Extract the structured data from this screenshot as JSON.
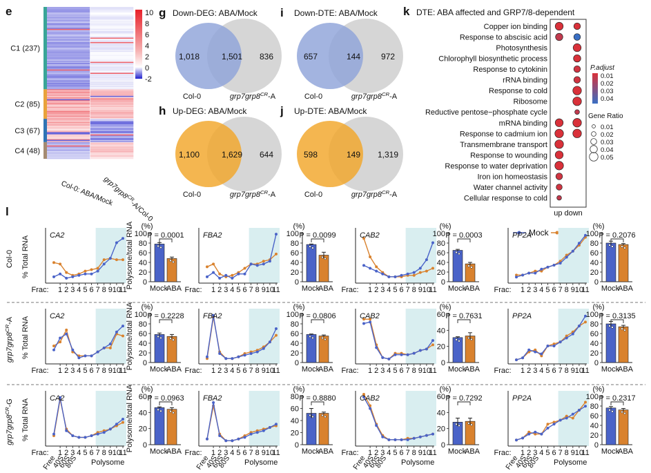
{
  "colors": {
    "heat_high": "#e8202a",
    "heat_mid": "#ffffff",
    "heat_low": "#2222cc",
    "venn_left_down": "#8fa4d9",
    "venn_right": "#c8c8c8",
    "venn_left_up": "#f2a62a",
    "mock": "#4a63c8",
    "aba": "#d9822e",
    "shade": "#d9eef0",
    "c1": "#39a597",
    "c2": "#e9a23b",
    "c3": "#2f74b5",
    "c4": "#a58b72"
  },
  "panel_e": {
    "letter": "e",
    "scale_ticks": [
      "10",
      "8",
      "6",
      "4",
      "2",
      "0",
      "-2"
    ],
    "clusters": [
      {
        "label": "C1 (237)",
        "color": "#39a597",
        "n": 237
      },
      {
        "label": "C2 (85)",
        "color": "#e9a23b",
        "n": 85
      },
      {
        "label": "C3 (67)",
        "color": "#2f74b5",
        "n": 67
      },
      {
        "label": "C4 (48)",
        "color": "#a58b72",
        "n": 48
      }
    ],
    "col1_label": "Col-0: ABA/Mock",
    "col2_label": "grp7grp8CR-A/Col-0",
    "col2_main": "grp7grp8",
    "col2_sup": "CR",
    "col2_tail": "-A/Col-0"
  },
  "venns": [
    {
      "letter": "g",
      "title": "Down-DEG: ABA/Mock",
      "left": "1,018",
      "middle": "1,501",
      "right": "836",
      "left_label": "Col-0",
      "right_main": "grp7grp8",
      "right_sup": "CR",
      "right_tail": "-A",
      "color": "#8fa4d9"
    },
    {
      "letter": "i",
      "title": "Down-DTE: ABA/Mock",
      "left": "657",
      "middle": "144",
      "right": "972",
      "left_label": "Col-0",
      "right_main": "grp7grp8",
      "right_sup": "CR",
      "right_tail": "-A",
      "color": "#8fa4d9"
    },
    {
      "letter": "h",
      "title": "Up-DEG: ABA/Mock",
      "left": "1,100",
      "middle": "1,629",
      "right": "644",
      "left_label": "Col-0",
      "right_main": "grp7grp8",
      "right_sup": "CR",
      "right_tail": "-A",
      "color": "#f2a62a"
    },
    {
      "letter": "j",
      "title": "Up-DTE: ABA/Mock",
      "left": "598",
      "middle": "149",
      "right": "1,319",
      "left_label": "Col-0",
      "right_main": "grp7grp8",
      "right_sup": "CR",
      "right_tail": "-A",
      "color": "#f2a62a"
    }
  ],
  "chart_data": [
    {
      "id": "k",
      "type": "scatter",
      "title": "DTE: ABA affected and GRP7/8-dependent",
      "letter": "k",
      "x_categories": [
        "up",
        "down"
      ],
      "x_axis_label": "up down",
      "legend_padj_title": "P.adjust",
      "legend_padj_ticks": [
        "0.01",
        "0.02",
        "0.03",
        "0.04"
      ],
      "legend_ratio_title": "Gene Ratio",
      "legend_ratio_ticks": [
        "0.01",
        "0.02",
        "0.03",
        "0.04",
        "0.05"
      ],
      "terms": [
        {
          "name": "Copper ion binding",
          "up": {
            "ratio": 0.045,
            "padj": 0.01
          },
          "down": {
            "ratio": 0.035,
            "padj": 0.01
          }
        },
        {
          "name": "Response to abscisic acid",
          "up": {
            "ratio": 0.04,
            "padj": 0.015
          },
          "down": {
            "ratio": 0.035,
            "padj": 0.045
          }
        },
        {
          "name": "Photosynthesis",
          "up": null,
          "down": {
            "ratio": 0.045,
            "padj": 0.01
          }
        },
        {
          "name": "Chlorophyll biosynthetic process",
          "up": null,
          "down": {
            "ratio": 0.04,
            "padj": 0.01
          }
        },
        {
          "name": "Response to cytokinin",
          "up": null,
          "down": {
            "ratio": 0.035,
            "padj": 0.012
          }
        },
        {
          "name": "rRNA binding",
          "up": null,
          "down": {
            "ratio": 0.035,
            "padj": 0.012
          }
        },
        {
          "name": "Response to cold",
          "up": null,
          "down": {
            "ratio": 0.05,
            "padj": 0.01
          }
        },
        {
          "name": "Ribosome",
          "up": null,
          "down": {
            "ratio": 0.05,
            "padj": 0.01
          }
        },
        {
          "name": "Reductive pentose−phosphate cycle",
          "up": null,
          "down": {
            "ratio": 0.02,
            "padj": 0.015
          }
        },
        {
          "name": "mRNA binding",
          "up": {
            "ratio": 0.045,
            "padj": 0.01
          },
          "down": {
            "ratio": 0.05,
            "padj": 0.01
          }
        },
        {
          "name": "Response to cadmium ion",
          "up": {
            "ratio": 0.05,
            "padj": 0.01
          },
          "down": {
            "ratio": 0.05,
            "padj": 0.01
          }
        },
        {
          "name": "Transmembrane transport",
          "up": {
            "ratio": 0.05,
            "padj": 0.01
          },
          "down": null
        },
        {
          "name": "Response to wounding",
          "up": {
            "ratio": 0.045,
            "padj": 0.01
          },
          "down": null
        },
        {
          "name": "Response to water deprivation",
          "up": {
            "ratio": 0.05,
            "padj": 0.01
          },
          "down": null
        },
        {
          "name": "Iron ion homeostasis",
          "up": {
            "ratio": 0.035,
            "padj": 0.012
          },
          "down": null
        },
        {
          "name": "Water channel activity",
          "up": {
            "ratio": 0.03,
            "padj": 0.012
          },
          "down": null
        },
        {
          "name": "Cellular response to cold",
          "up": {
            "ratio": 0.02,
            "padj": 0.015
          },
          "down": null
        }
      ]
    },
    {
      "id": "l",
      "type": "line",
      "letter": "l",
      "legend": [
        "Mock",
        "ABA"
      ],
      "x_ticks": [
        "Frac:",
        "1",
        "2",
        "3",
        "4",
        "5",
        "6",
        "7",
        "8",
        "9",
        "10",
        "11"
      ],
      "bottom_labels": [
        "Free",
        "40S",
        "60S",
        "80S",
        "Polysome"
      ],
      "left_ylabel_pct": "% Total RNA",
      "bar_unit": "(%)",
      "bar_ylabel": "Polysome/total RNA",
      "bar_categories": [
        "Mock",
        "ABA"
      ],
      "rows": [
        {
          "genotype": "Col-0",
          "genotype_main": "Col-0",
          "genotype_sup": "",
          "genotype_tail": "",
          "genes": [
            {
              "name": "CA2",
              "ymax": 35,
              "mock": [
                3,
                5,
                2,
                3,
                4,
                5,
                5,
                7,
                12,
                16,
                27,
                30
              ],
              "aba": [
                13,
                12,
                6,
                4,
                5,
                7,
                8,
                9,
                15,
                16,
                15,
                15
              ]
            },
            {
              "name": "FBA2",
              "ymax": 35,
              "mock": [
                3,
                6,
                2,
                4,
                2,
                5,
                5,
                12,
                11,
                12,
                14,
                33
              ],
              "aba": [
                10,
                12,
                5,
                3,
                4,
                6,
                9,
                12,
                12,
                14,
                15,
                19
              ]
            },
            {
              "name": "CAB2",
              "ymax": 35,
              "mock": [
                11,
                9,
                7,
                5,
                3,
                3,
                4,
                5,
                6,
                9,
                15,
                27
              ],
              "aba": [
                30,
                17,
                10,
                6,
                3,
                3,
                3,
                4,
                4,
                6,
                7,
                9
              ]
            },
            {
              "name": "PP2A",
              "ymax": 25,
              "mock": [
                2,
                3,
                4,
                4,
                6,
                7,
                8,
                9,
                12,
                15,
                19,
                23
              ],
              "aba": [
                3,
                3,
                4,
                5,
                5,
                7,
                8,
                10,
                13,
                15,
                18,
                22
              ]
            }
          ],
          "bars": [
            {
              "p": "P = 0.0001",
              "ymax": 100,
              "ticks": [
                "100",
                "80",
                "60",
                "40",
                "20",
                "0"
              ],
              "mock": 78,
              "aba": 48,
              "mock_err": 3,
              "aba_err": 3
            },
            {
              "p": "P = 0.0099",
              "ymax": 100,
              "ticks": [
                "100",
                "80",
                "60",
                "40",
                "20",
                "0"
              ],
              "mock": 77,
              "aba": 55,
              "mock_err": 1,
              "aba_err": 6
            },
            {
              "p": "P = 0.0003",
              "ymax": 100,
              "ticks": [
                "100",
                "80",
                "60",
                "40",
                "20",
                "0"
              ],
              "mock": 65,
              "aba": 37,
              "mock_err": 2,
              "aba_err": 3
            },
            {
              "p": "P = 0.2076",
              "ymax": 100,
              "ticks": [
                "100",
                "80",
                "60",
                "40",
                "20",
                "0"
              ],
              "mock": 80,
              "aba": 77,
              "mock_err": 4,
              "aba_err": 2
            }
          ]
        },
        {
          "genotype": "grp7grp8CR-A",
          "genotype_main": "grp7grp8",
          "genotype_sup": "CR",
          "genotype_tail": "-A",
          "genes": [
            {
              "name": "CA2",
              "ymax": 25,
              "mock": [
                6,
                12,
                14,
                6,
                2,
                3,
                3,
                5,
                7,
                9,
                15,
                18
              ],
              "aba": [
                8,
                10,
                16,
                5,
                3,
                3,
                3,
                5,
                7,
                7,
                14,
                13
              ]
            },
            {
              "name": "FBA2",
              "ymax": 30,
              "mock": [
                3,
                28,
                5,
                2,
                2,
                3,
                4,
                5,
                6,
                8,
                12,
                20
              ],
              "aba": [
                2,
                27,
                6,
                2,
                2,
                3,
                5,
                6,
                7,
                9,
                12,
                16
              ]
            },
            {
              "name": "CAB2",
              "ymax": 35,
              "mock": [
                27,
                28,
                10,
                3,
                2,
                5,
                5,
                5,
                6,
                8,
                9,
                15
              ],
              "aba": [
                30,
                30,
                12,
                3,
                2,
                6,
                6,
                5,
                6,
                8,
                9,
                12
              ]
            },
            {
              "name": "PP2A",
              "ymax": 25,
              "mock": [
                1,
                2,
                6,
                5,
                4,
                8,
                8,
                10,
                12,
                14,
                18,
                23
              ],
              "aba": [
                1,
                2,
                5,
                6,
                3,
                8,
                9,
                10,
                13,
                15,
                18,
                20
              ]
            }
          ],
          "bars": [
            {
              "p": "P = 0.2228",
              "ymax": 100,
              "ticks": [
                "100",
                "80",
                "60",
                "40",
                "20",
                "0"
              ],
              "mock": 58,
              "aba": 54,
              "mock_err": 3,
              "aba_err": 4
            },
            {
              "p": "P = 0.0806",
              "ymax": 100,
              "ticks": [
                "100",
                "80",
                "60",
                "40",
                "20",
                "0"
              ],
              "mock": 58,
              "aba": 55,
              "mock_err": 1,
              "aba_err": 2
            },
            {
              "p": "P = 0.7631",
              "ymax": 60,
              "ticks": [
                "60",
                "40",
                "20",
                "0"
              ],
              "mock": 31,
              "aba": 33,
              "mock_err": 1,
              "aba_err": 4
            },
            {
              "p": "P = 0.3135",
              "ymax": 100,
              "ticks": [
                "100",
                "80",
                "60",
                "40",
                "20",
                "0"
              ],
              "mock": 80,
              "aba": 74,
              "mock_err": 5,
              "aba_err": 3
            }
          ]
        },
        {
          "genotype": "grp7grp8CR-G",
          "genotype_main": "grp7grp8",
          "genotype_sup": "CR",
          "genotype_tail": "-G",
          "genes": [
            {
              "name": "CA2",
              "ymax": 30,
              "mock": [
                6,
                28,
                8,
                5,
                4,
                4,
                5,
                6,
                7,
                9,
                12,
                15
              ],
              "aba": [
                5,
                27,
                9,
                5,
                4,
                4,
                5,
                7,
                8,
                9,
                11,
                13
              ]
            },
            {
              "name": "FBA2",
              "ymax": 30,
              "mock": [
                3,
                25,
                5,
                2,
                2,
                3,
                4,
                6,
                7,
                8,
                10,
                12
              ],
              "aba": [
                3,
                23,
                6,
                2,
                2,
                3,
                5,
                7,
                8,
                9,
                10,
                11
              ]
            },
            {
              "name": "CAB2",
              "ymax": 35,
              "mock": [
                33,
                25,
                13,
                5,
                3,
                3,
                3,
                3,
                4,
                5,
                6,
                7
              ],
              "aba": [
                35,
                27,
                14,
                6,
                3,
                3,
                3,
                4,
                4,
                5,
                6,
                7
              ]
            },
            {
              "name": "PP2A",
              "ymax": 25,
              "mock": [
                2,
                3,
                5,
                6,
                5,
                8,
                10,
                12,
                13,
                15,
                17,
                19
              ],
              "aba": [
                2,
                3,
                6,
                5,
                5,
                10,
                11,
                12,
                14,
                13,
                17,
                21
              ]
            }
          ],
          "bars": [
            {
              "p": "P = 0.0963",
              "ymax": 60,
              "ticks": [
                "60",
                "40",
                "20",
                "0"
              ],
              "mock": 46,
              "aba": 44,
              "mock_err": 1,
              "aba_err": 2
            },
            {
              "p": "P = 0.8880",
              "ymax": 80,
              "ticks": [
                "80",
                "60",
                "40",
                "20",
                "0"
              ],
              "mock": 52,
              "aba": 52,
              "mock_err": 8,
              "aba_err": 2
            },
            {
              "p": "P = 0.7292",
              "ymax": 60,
              "ticks": [
                "60",
                "40",
                "20",
                "0"
              ],
              "mock": 28,
              "aba": 29,
              "mock_err": 5,
              "aba_err": 4
            },
            {
              "p": "P = 0.2317",
              "ymax": 100,
              "ticks": [
                "100",
                "80",
                "60",
                "40",
                "20",
                "0"
              ],
              "mock": 76,
              "aba": 72,
              "mock_err": 3,
              "aba_err": 3
            }
          ]
        }
      ]
    }
  ]
}
